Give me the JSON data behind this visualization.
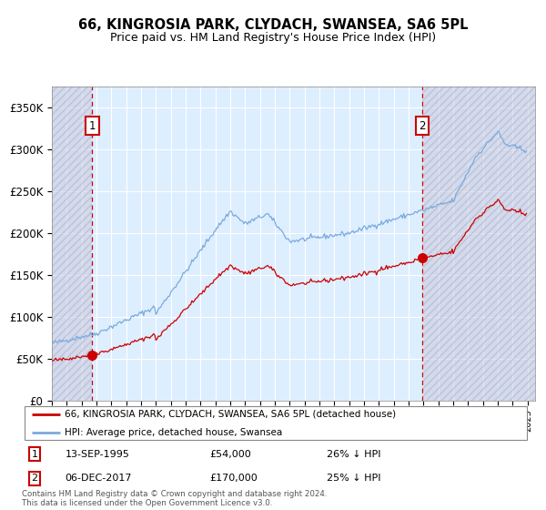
{
  "title": "66, KINGROSIA PARK, CLYDACH, SWANSEA, SA6 5PL",
  "subtitle": "Price paid vs. HM Land Registry's House Price Index (HPI)",
  "ylim": [
    0,
    375000
  ],
  "yticks": [
    0,
    50000,
    100000,
    150000,
    200000,
    250000,
    300000,
    350000
  ],
  "ytick_labels": [
    "£0",
    "£50K",
    "£100K",
    "£150K",
    "£200K",
    "£250K",
    "£300K",
    "£350K"
  ],
  "hpi_color": "#7aaadd",
  "price_color": "#cc0000",
  "marker_color": "#cc0000",
  "bg_color": "#ddeeff",
  "grid_color": "#ffffff",
  "vline_color": "#cc0000",
  "sale1_date": "13-SEP-1995",
  "sale1_price": 54000,
  "sale2_date": "06-DEC-2017",
  "sale2_price": 170000,
  "sale1_pct": "26% ↓ HPI",
  "sale2_pct": "25% ↓ HPI",
  "legend_line1": "66, KINGROSIA PARK, CLYDACH, SWANSEA, SA6 5PL (detached house)",
  "legend_line2": "HPI: Average price, detached house, Swansea",
  "footer": "Contains HM Land Registry data © Crown copyright and database right 2024.\nThis data is licensed under the Open Government Licence v3.0.",
  "xlim_start": 1993.0,
  "xlim_end": 2025.5,
  "sale1_t": 1995.71,
  "sale2_t": 2017.92
}
